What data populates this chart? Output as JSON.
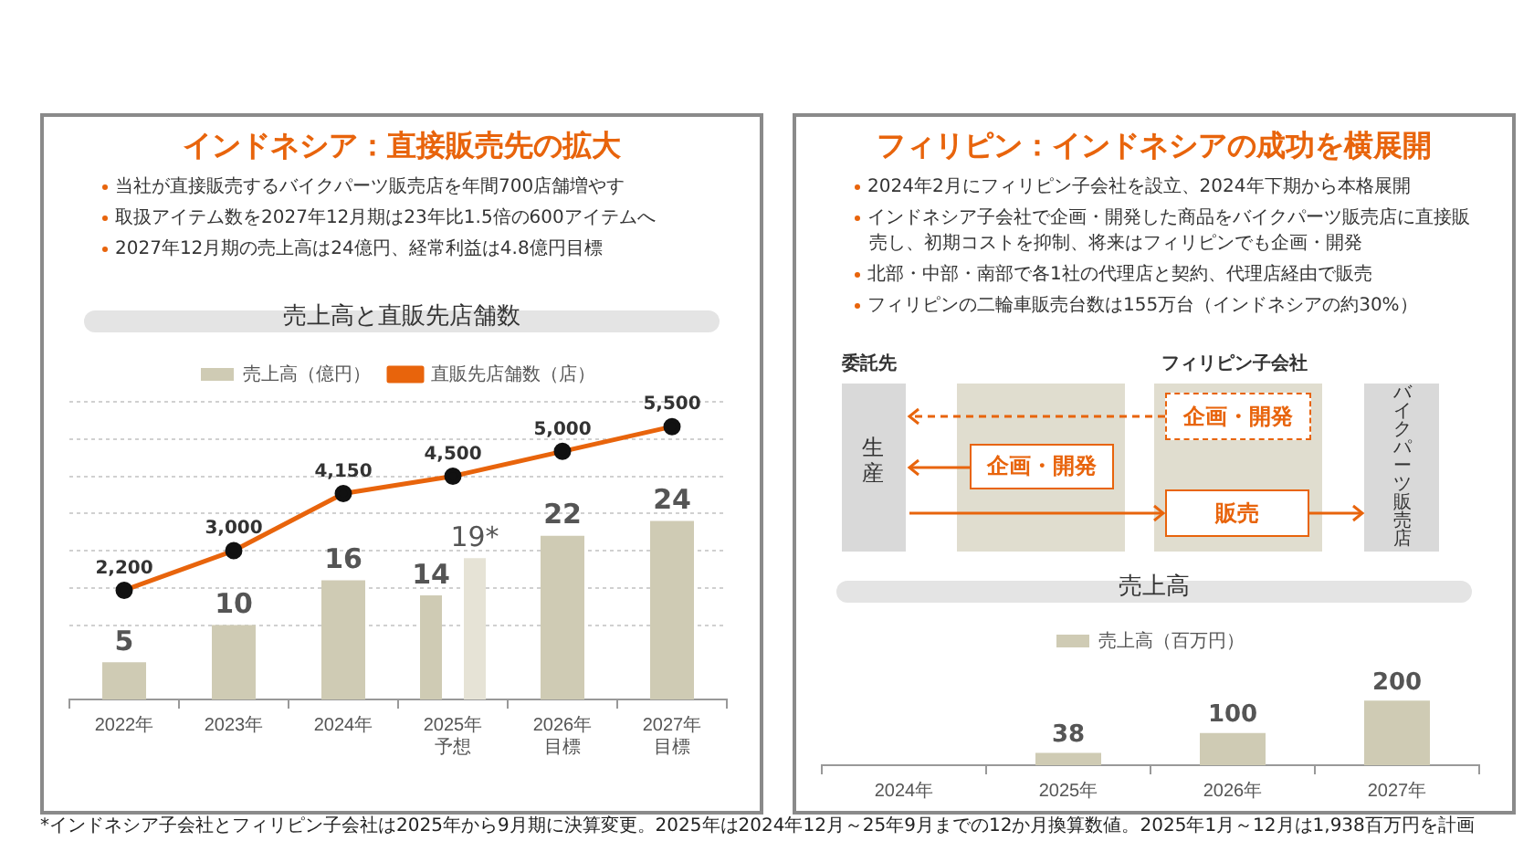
{
  "chart_data": [
    {
      "type": "other",
      "title": "インドネシア：直接販売先の拡大",
      "annotations": [
        "当社が直接販売するバイクパーツ販売店を年間700店舗増やす",
        "取扱アイテム数を2027年12月期は23年比1.5倍の600アイテムへ",
        "2027年12月期の売上高は24億円、経常利益は4.8億円目標"
      ]
    },
    {
      "type": "bar",
      "title": "売上高と直販先店舗数",
      "categories": [
        "2022年",
        "2023年",
        "2024年",
        "2025年予想",
        "2026年目標",
        "2027年目標"
      ],
      "series": [
        {
          "name": "売上高（億円）",
          "color": "#cfcbb4",
          "values": [
            5,
            10,
            16,
            14,
            22,
            24
          ],
          "value_labels": [
            "5",
            "10",
            "16",
            "14",
            "22",
            "24"
          ]
        },
        {
          "color": "#e6e3d6",
          "values": [
            null,
            null,
            null,
            19,
            null,
            null
          ],
          "value_labels": [
            null,
            null,
            null,
            "19*",
            null,
            null
          ]
        },
        {
          "name": "直販先店舗数（店）",
          "type": "line",
          "axis": "y2",
          "marker": "circle",
          "color": "#e8640c",
          "values": [
            2200,
            3000,
            4150,
            4500,
            5000,
            5500
          ],
          "value_labels": [
            "2,200",
            "3,000",
            "4,150",
            "4,500",
            "5,000",
            "5,500"
          ]
        }
      ],
      "ylim": [
        0,
        40
      ],
      "yticks": [
        {
          "value": 10,
          "label": null
        },
        {
          "value": 15,
          "label": null
        },
        {
          "value": 20,
          "label": null
        },
        {
          "value": 25,
          "label": null
        },
        {
          "value": 30,
          "label": null
        },
        {
          "value": 35,
          "label": null
        },
        {
          "value": 40,
          "label": null
        }
      ],
      "y2lim": [
        0,
        6000
      ],
      "grid": "y",
      "legend": "top",
      "tick_labels": "x",
      "annotations": [
        "*インドネシア子会社とフィリピン子会社は2025年から9月期に決算変更。2025年は2024年12月～25年9月までの12か月換算数値。2025年1月～12月は1,938百万円を計画"
      ]
    },
    {
      "type": "other",
      "title": "フィリピン：インドネシアの成功を横展開",
      "annotations": [
        "2024年2月にフィリピン子会社を設立、2024年下期から本格展開",
        "インドネシア子会社で企画・開発した商品をバイクパーツ販売店に直接販売し、初期コストを抑制、将来はフィリピンでも企画・開発",
        "北部・中部・南部で各1社の代理店と契約、代理店経由で販売",
        "フィリピンの二輪車販売台数は155万台（インドネシアの約30%）"
      ]
    },
    {
      "type": "other",
      "annotations": [
        "委託先",
        "フィリピン子会社",
        "生産",
        "企画・開発",
        "企画・開発",
        "販売",
        "バイクパーツ販売店"
      ]
    },
    {
      "type": "bar",
      "title": "売上高",
      "categories": [
        "2024年",
        "2025年",
        "2026年",
        "2027年"
      ],
      "series": [
        {
          "name": "売上高（百万円）",
          "color": "#cfcbb4",
          "values": [
            null,
            38,
            100,
            200
          ]
        }
      ],
      "legend": "top",
      "tick_labels": "x",
      "data_labels": true
    }
  ]
}
